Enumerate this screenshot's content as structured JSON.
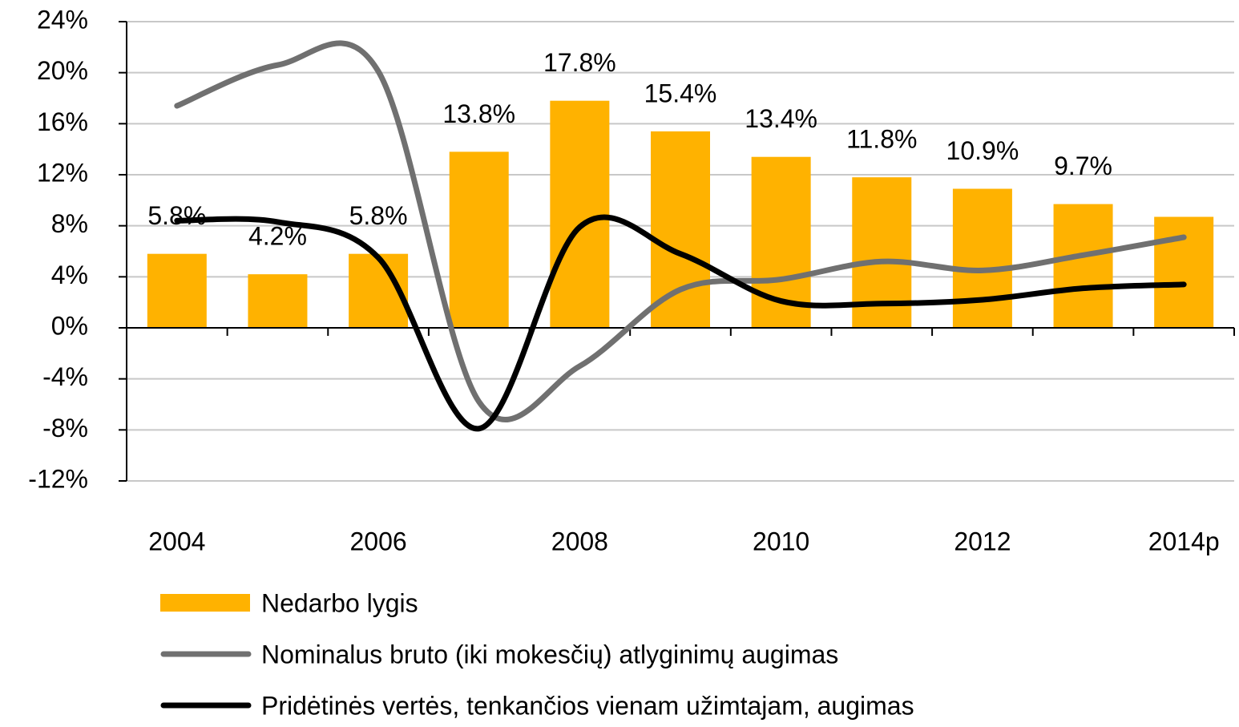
{
  "chart_data": {
    "type": "bar_line",
    "categories": [
      "2004",
      null,
      "2006",
      null,
      "2008",
      null,
      "2010",
      null,
      "2012",
      null,
      "2014p"
    ],
    "series": [
      {
        "name": "Nedarbo lygis",
        "type": "bar",
        "color": "#FFB200",
        "values": [
          5.8,
          4.2,
          5.8,
          13.8,
          17.8,
          15.4,
          13.4,
          11.8,
          10.9,
          9.7,
          8.7
        ],
        "value_labels": [
          "5.8%",
          "4.2%",
          "5.8%",
          "13.8%",
          "17.8%",
          "15.4%",
          "13.4%",
          "11.8%",
          "10.9%",
          "9.7%",
          null
        ]
      },
      {
        "name": "Nominalus bruto (iki mokesčių) atlyginimų augimas",
        "type": "line",
        "color": "#707070",
        "values": [
          17.4,
          20.6,
          20.1,
          -5.8,
          -3.0,
          3.0,
          3.8,
          5.2,
          4.5,
          5.7,
          7.1
        ]
      },
      {
        "name": "Pridėtinės vertės, tenkančios vienam užimtajam, augimas",
        "type": "line",
        "color": "#000000",
        "values": [
          8.4,
          8.3,
          5.5,
          -7.9,
          7.9,
          5.8,
          2.1,
          1.9,
          2.2,
          3.1,
          3.4
        ]
      }
    ],
    "ylim": [
      -12,
      24
    ],
    "yticks": [
      {
        "value": -12,
        "label": "-12%"
      },
      {
        "value": -8,
        "label": "-8%"
      },
      {
        "value": -4,
        "label": "-4%"
      },
      {
        "value": 0,
        "label": "0%"
      },
      {
        "value": 4,
        "label": "4%"
      },
      {
        "value": 8,
        "label": "8%"
      },
      {
        "value": 12,
        "label": "12%"
      },
      {
        "value": 16,
        "label": "16%"
      },
      {
        "value": 20,
        "label": "20%"
      },
      {
        "value": 24,
        "label": "24%"
      }
    ],
    "grid": true,
    "legend": "bottom"
  }
}
